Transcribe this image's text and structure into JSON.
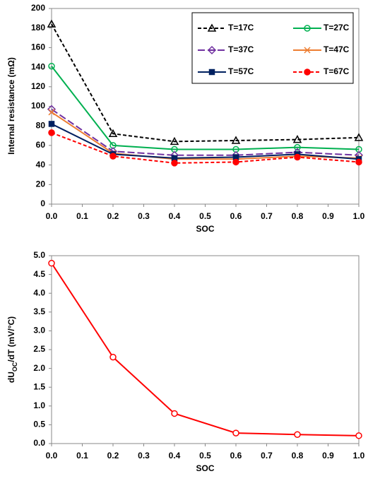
{
  "chart_data": [
    {
      "type": "line",
      "xlabel": "SOC",
      "ylabel": "Internal  resistance (mΩ)",
      "x": [
        0.0,
        0.2,
        0.4,
        0.6,
        0.8,
        1.0
      ],
      "xlim": [
        0,
        1
      ],
      "ylim": [
        0,
        200
      ],
      "xticks": [
        {
          "value": 0,
          "label": "0.0"
        },
        {
          "value": 0.1,
          "label": "0.1"
        },
        {
          "value": 0.2,
          "label": "0.2"
        },
        {
          "value": 0.3,
          "label": "0.3"
        },
        {
          "value": 0.4,
          "label": "0.4"
        },
        {
          "value": 0.5,
          "label": "0.5"
        },
        {
          "value": 0.6,
          "label": "0.6"
        },
        {
          "value": 0.7,
          "label": "0.7"
        },
        {
          "value": 0.8,
          "label": "0.8"
        },
        {
          "value": 0.9,
          "label": "0.9"
        },
        {
          "value": 1,
          "label": "1.0"
        }
      ],
      "yticks": [
        0,
        20,
        40,
        60,
        80,
        100,
        120,
        140,
        160,
        180,
        200
      ],
      "grid": false,
      "legend": "upper right",
      "series": [
        {
          "name": "T=17C",
          "color": "#000000",
          "dash": "dashed",
          "marker": "triangle",
          "marker_fill": "none",
          "values": [
            184,
            72,
            64,
            65,
            66,
            68
          ]
        },
        {
          "name": "T=27C",
          "color": "#00b050",
          "dash": "solid",
          "marker": "circle",
          "marker_fill": "none",
          "values": [
            141,
            60,
            56,
            56,
            58,
            56
          ]
        },
        {
          "name": "T=37C",
          "color": "#7030a0",
          "dash": "longdash",
          "marker": "diamond",
          "marker_fill": "none",
          "values": [
            97,
            54,
            50,
            50,
            53,
            50
          ]
        },
        {
          "name": "T=47C",
          "color": "#ed7d31",
          "dash": "solid",
          "marker": "x",
          "marker_fill": "none",
          "values": [
            94,
            52,
            46,
            46,
            49,
            47
          ]
        },
        {
          "name": "T=57C",
          "color": "#002060",
          "dash": "solid",
          "marker": "square",
          "marker_fill": "#002060",
          "values": [
            82,
            51,
            47,
            48,
            51,
            46
          ]
        },
        {
          "name": "T=67C",
          "color": "#ff0000",
          "dash": "dashed",
          "marker": "circle",
          "marker_fill": "#ff0000",
          "values": [
            73,
            49,
            42,
            43,
            48,
            43
          ]
        }
      ]
    },
    {
      "type": "line",
      "xlabel": "SOC",
      "ylabel": [
        "dU",
        "OC",
        "/dT (mV/°C)"
      ],
      "x": [
        0.0,
        0.2,
        0.4,
        0.6,
        0.8,
        1.0
      ],
      "xlim": [
        0,
        1
      ],
      "ylim": [
        0,
        5
      ],
      "xticks": [
        {
          "value": 0,
          "label": "0.0"
        },
        {
          "value": 0.1,
          "label": "0.1"
        },
        {
          "value": 0.2,
          "label": "0.2"
        },
        {
          "value": 0.3,
          "label": "0.3"
        },
        {
          "value": 0.4,
          "label": "0.4"
        },
        {
          "value": 0.5,
          "label": "0.5"
        },
        {
          "value": 0.6,
          "label": "0.6"
        },
        {
          "value": 0.7,
          "label": "0.7"
        },
        {
          "value": 0.8,
          "label": "0.8"
        },
        {
          "value": 0.9,
          "label": "0.9"
        },
        {
          "value": 1,
          "label": "1.0"
        }
      ],
      "yticks": [
        {
          "value": 0,
          "label": "0.0"
        },
        {
          "value": 0.5,
          "label": "0.5"
        },
        {
          "value": 1,
          "label": "1.0"
        },
        {
          "value": 1.5,
          "label": "1.5"
        },
        {
          "value": 2,
          "label": "2.0"
        },
        {
          "value": 2.5,
          "label": "2.5"
        },
        {
          "value": 3,
          "label": "3.0"
        },
        {
          "value": 3.5,
          "label": "3.5"
        },
        {
          "value": 4,
          "label": "4.0"
        },
        {
          "value": 4.5,
          "label": "4.5"
        },
        {
          "value": 5,
          "label": "5.0"
        }
      ],
      "grid": false,
      "series": [
        {
          "color": "#ff0000",
          "dash": "solid",
          "marker": "circle",
          "marker_fill": "#ffffff",
          "values": [
            4.8,
            2.3,
            0.8,
            0.28,
            0.24,
            0.21
          ]
        }
      ]
    }
  ]
}
